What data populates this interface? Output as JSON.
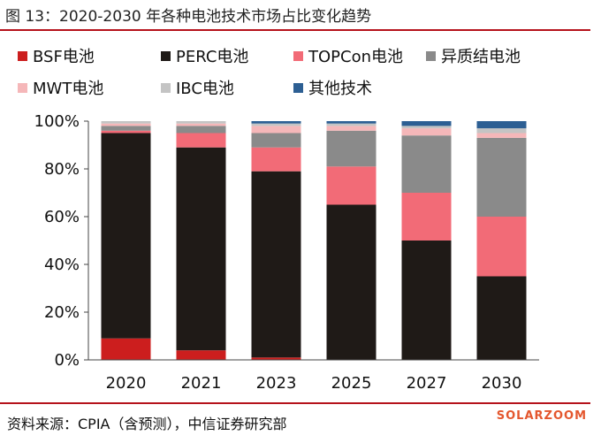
{
  "title": "图 13：2020-2030 年各种电池技术市场占比变化趋势",
  "source": "资料来源：CPIA（含预测），中信证券研究部",
  "watermark": "SOLARZOOM",
  "chart_data": {
    "type": "bar",
    "stacked": true,
    "categories": [
      "2020",
      "2021",
      "2023",
      "2025",
      "2027",
      "2030"
    ],
    "series": [
      {
        "name": "BSF电池",
        "color": "#cc1e1e",
        "values": [
          9,
          4,
          1,
          0,
          0,
          0
        ]
      },
      {
        "name": "PERC电池",
        "color": "#1f1a17",
        "values": [
          86,
          85,
          78,
          65,
          50,
          35
        ]
      },
      {
        "name": "TOPCon电池",
        "color": "#f26b77",
        "values": [
          1,
          6,
          10,
          16,
          20,
          25
        ]
      },
      {
        "name": "异质结电池",
        "color": "#8a8a8a",
        "values": [
          2,
          3,
          6,
          15,
          24,
          33
        ]
      },
      {
        "name": "MWT电池",
        "color": "#f5b7b9",
        "values": [
          1,
          1,
          3,
          2,
          3,
          2
        ]
      },
      {
        "name": "IBC电池",
        "color": "#c4c4c4",
        "values": [
          1,
          1,
          1,
          1,
          1,
          2
        ]
      },
      {
        "name": "其他技术",
        "color": "#2d5f93",
        "values": [
          0,
          0,
          1,
          1,
          2,
          3
        ]
      }
    ],
    "y_ticks": [
      "0%",
      "20%",
      "40%",
      "60%",
      "80%",
      "100%"
    ],
    "ylim": [
      0,
      100
    ],
    "grid": false,
    "legend_position": "top"
  }
}
